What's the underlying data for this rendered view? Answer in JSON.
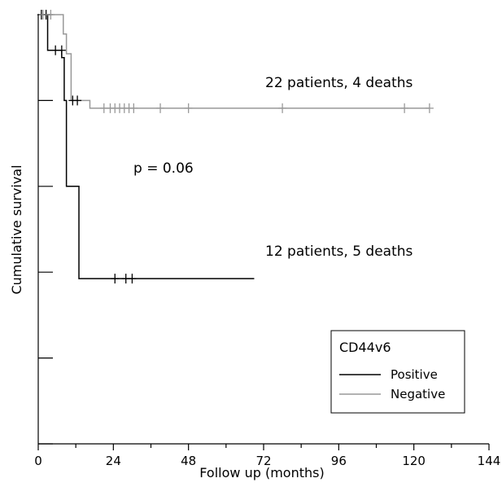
{
  "chart_data": {
    "type": "line",
    "xlabel": "Follow up (months)",
    "ylabel": "Cumulative survival",
    "xlim": [
      0,
      144
    ],
    "ylim": [
      0,
      1
    ],
    "x_ticks": [
      0,
      24,
      48,
      72,
      96,
      120,
      144
    ],
    "y_ticks": [
      0,
      0.2,
      0.4,
      0.6,
      0.8,
      1.0
    ],
    "grid": false,
    "legend": {
      "title": "CD44v6",
      "position": "bottom-right",
      "entries": [
        {
          "label": "Positive",
          "color": "#000000"
        },
        {
          "label": "Negative",
          "color": "#999999"
        }
      ]
    },
    "series": [
      {
        "name": "Positive",
        "color": "#000000",
        "steps": [
          [
            0,
            1.0
          ],
          [
            3,
            0.917
          ],
          [
            7.5,
            0.9
          ],
          [
            8.3,
            0.8
          ],
          [
            9,
            0.6
          ],
          [
            13,
            0.385
          ],
          [
            69,
            0.385
          ]
        ],
        "censored": [
          [
            1,
            1.0
          ],
          [
            2.5,
            1.0
          ],
          [
            5.5,
            0.917
          ],
          [
            7.5,
            0.917
          ],
          [
            11,
            0.8
          ],
          [
            12.5,
            0.8
          ],
          [
            24.5,
            0.385
          ],
          [
            28,
            0.385
          ],
          [
            30,
            0.385
          ]
        ]
      },
      {
        "name": "Negative",
        "color": "#999999",
        "steps": [
          [
            0,
            1.0
          ],
          [
            8,
            0.955
          ],
          [
            9,
            0.909
          ],
          [
            10.5,
            0.8
          ],
          [
            16,
            0.8
          ],
          [
            16.5,
            0.782
          ],
          [
            125,
            0.782
          ]
        ],
        "censored": [
          [
            1.5,
            1.0
          ],
          [
            4,
            1.0
          ],
          [
            21,
            0.782
          ],
          [
            23,
            0.782
          ],
          [
            24.5,
            0.782
          ],
          [
            26,
            0.782
          ],
          [
            27.5,
            0.782
          ],
          [
            29,
            0.782
          ],
          [
            30.5,
            0.782
          ],
          [
            39,
            0.782
          ],
          [
            48,
            0.782
          ],
          [
            78,
            0.782
          ],
          [
            117,
            0.782
          ],
          [
            125,
            0.782
          ]
        ]
      }
    ],
    "annotations": {
      "negative_summary": "22 patients, 4 deaths",
      "positive_summary": "12 patients, 5 deaths",
      "p_value": "p = 0.06"
    }
  }
}
